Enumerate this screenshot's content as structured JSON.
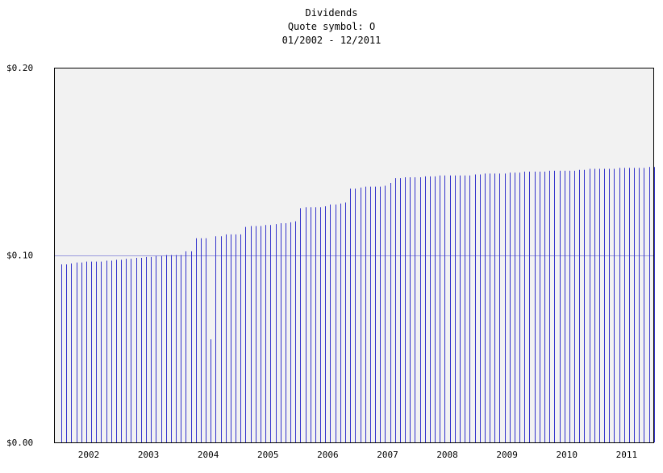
{
  "chart_data": {
    "type": "bar",
    "title": "Dividends",
    "subtitle": "Quote symbol: O",
    "range_label": "01/2002 - 12/2011",
    "ylim": [
      0,
      0.2
    ],
    "y_ticks": [
      "$0.00",
      "$0.10",
      "$0.20"
    ],
    "y_tick_values": [
      0,
      0.1,
      0.2
    ],
    "x_ticks": [
      "2002",
      "2003",
      "2004",
      "2005",
      "2006",
      "2007",
      "2008",
      "2009",
      "2010",
      "2011"
    ],
    "grid": true,
    "colors": {
      "bar": "#3333cc",
      "plot_bg": "#f2f2f2",
      "gridline": "#9999dd",
      "frame": "#000000"
    },
    "months": [
      "2002-01",
      "2002-02",
      "2002-03",
      "2002-04",
      "2002-05",
      "2002-06",
      "2002-07",
      "2002-08",
      "2002-09",
      "2002-10",
      "2002-11",
      "2002-12",
      "2003-01",
      "2003-02",
      "2003-03",
      "2003-04",
      "2003-05",
      "2003-06",
      "2003-07",
      "2003-08",
      "2003-09",
      "2003-10",
      "2003-11",
      "2003-12",
      "2004-01",
      "2004-02",
      "2004-03",
      "2004-04",
      "2004-05",
      "2004-06",
      "2004-07",
      "2004-08",
      "2004-09",
      "2004-10",
      "2004-11",
      "2004-12",
      "2005-01",
      "2005-02",
      "2005-03",
      "2005-04",
      "2005-05",
      "2005-06",
      "2005-07",
      "2005-08",
      "2005-09",
      "2005-10",
      "2005-11",
      "2005-12",
      "2006-01",
      "2006-02",
      "2006-03",
      "2006-04",
      "2006-05",
      "2006-06",
      "2006-07",
      "2006-08",
      "2006-09",
      "2006-10",
      "2006-11",
      "2006-12",
      "2007-01",
      "2007-02",
      "2007-03",
      "2007-04",
      "2007-05",
      "2007-06",
      "2007-07",
      "2007-08",
      "2007-09",
      "2007-10",
      "2007-11",
      "2007-12",
      "2008-01",
      "2008-02",
      "2008-03",
      "2008-04",
      "2008-05",
      "2008-06",
      "2008-07",
      "2008-08",
      "2008-09",
      "2008-10",
      "2008-11",
      "2008-12",
      "2009-01",
      "2009-02",
      "2009-03",
      "2009-04",
      "2009-05",
      "2009-06",
      "2009-07",
      "2009-08",
      "2009-09",
      "2009-10",
      "2009-11",
      "2009-12",
      "2010-01",
      "2010-02",
      "2010-03",
      "2010-04",
      "2010-05",
      "2010-06",
      "2010-07",
      "2010-08",
      "2010-09",
      "2010-10",
      "2010-11",
      "2010-12",
      "2011-01",
      "2011-02",
      "2011-03",
      "2011-04",
      "2011-05",
      "2011-06",
      "2011-07",
      "2011-08",
      "2011-09",
      "2011-10",
      "2011-11",
      "2011-12"
    ],
    "values": [
      0.095,
      0.095,
      0.0955,
      0.096,
      0.096,
      0.0965,
      0.0965,
      0.0965,
      0.0965,
      0.097,
      0.097,
      0.0975,
      0.0975,
      0.098,
      0.098,
      0.0985,
      0.0985,
      0.099,
      0.099,
      0.0995,
      0.0995,
      0.1,
      0.1,
      0.1,
      0.1,
      0.102,
      0.102,
      0.109,
      0.109,
      0.109,
      0.055,
      0.11,
      0.11,
      0.111,
      0.111,
      0.111,
      0.111,
      0.115,
      0.1155,
      0.1155,
      0.1155,
      0.116,
      0.116,
      0.1165,
      0.117,
      0.117,
      0.1175,
      0.118,
      0.125,
      0.1255,
      0.1255,
      0.1255,
      0.1255,
      0.126,
      0.127,
      0.127,
      0.1275,
      0.128,
      0.1355,
      0.1355,
      0.136,
      0.1365,
      0.1365,
      0.1365,
      0.1365,
      0.137,
      0.1385,
      0.141,
      0.141,
      0.1415,
      0.1415,
      0.1415,
      0.1415,
      0.142,
      0.142,
      0.142,
      0.1425,
      0.1425,
      0.1425,
      0.1425,
      0.1425,
      0.1425,
      0.1425,
      0.143,
      0.143,
      0.1435,
      0.1435,
      0.1435,
      0.1435,
      0.1435,
      0.144,
      0.144,
      0.144,
      0.1445,
      0.1445,
      0.1445,
      0.1445,
      0.1445,
      0.145,
      0.145,
      0.145,
      0.145,
      0.145,
      0.145,
      0.1455,
      0.1455,
      0.146,
      0.146,
      0.146,
      0.146,
      0.146,
      0.146,
      0.1465,
      0.1465,
      0.1465,
      0.1465,
      0.1465,
      0.1465,
      0.147,
      0.147
    ]
  }
}
